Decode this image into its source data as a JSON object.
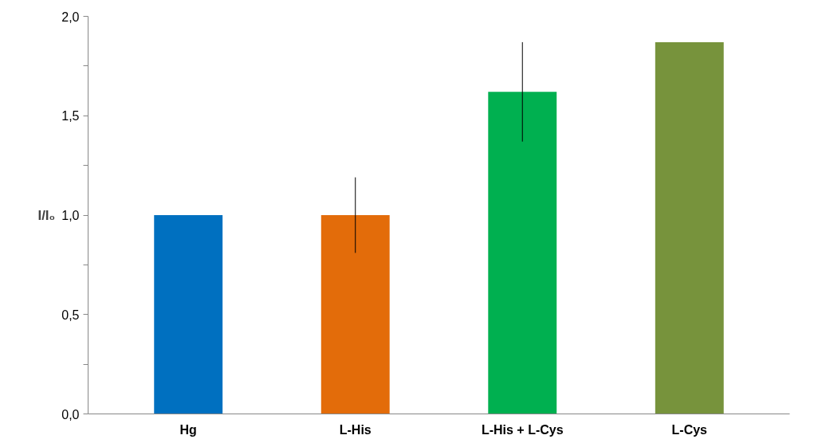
{
  "chart_data": {
    "type": "bar",
    "ylabel": "I/I₀",
    "categories": [
      "Hg",
      "L-His",
      "L-His + L-Cys",
      "L-Cys"
    ],
    "values": [
      1.0,
      1.0,
      1.62,
      1.87
    ],
    "colors": [
      "#0070c0",
      "#e36c0a",
      "#00b050",
      "#77933c"
    ],
    "errors": [
      null,
      0.19,
      0.25,
      null
    ],
    "ylim": [
      0,
      2.0
    ],
    "yticks": [
      {
        "value": 0,
        "label": "0,0"
      },
      {
        "value": 0.25,
        "label": null
      },
      {
        "value": 0.5,
        "label": "0,5"
      },
      {
        "value": 0.75,
        "label": null
      },
      {
        "value": 1.0,
        "label": "1,0"
      },
      {
        "value": 1.25,
        "label": null
      },
      {
        "value": 1.5,
        "label": "1,5"
      },
      {
        "value": 1.75,
        "label": null
      },
      {
        "value": 2.0,
        "label": "2,0"
      }
    ],
    "grid": false
  }
}
